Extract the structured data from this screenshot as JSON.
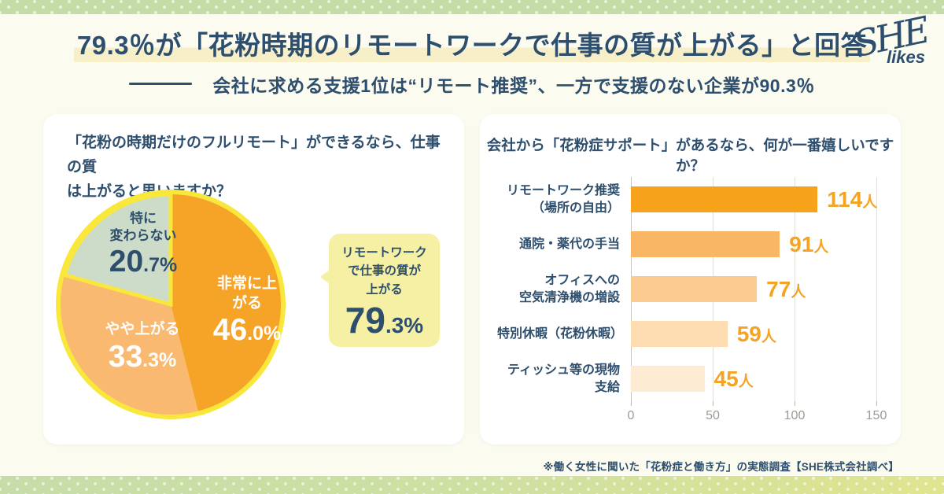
{
  "header": {
    "title": "79.3％が「花粉時期のリモートワークで仕事の質が上がる」と回答",
    "subtitle": "会社に求める支援1位は“リモート推奨”、一方で支援のない企業が90.3％",
    "highlight_color": "#F7EFC8"
  },
  "logo": {
    "main": "SHE",
    "sub": "likes"
  },
  "left_card": {
    "question_line1": "「花粉の時期だけのフルリモート」ができるなら、仕事の質",
    "question_line2": "は上がると思いますか？",
    "callout": {
      "line1": "リモートワーク",
      "line2": "で仕事の質が",
      "line3": "上がる",
      "value_big": "79",
      "value_small": ".3%",
      "bg": "#F5F0A3"
    }
  },
  "right_card": {
    "question": "会社から「花粉症サポート」があるなら、何が一番嬉しいですか？"
  },
  "footer": {
    "note": "※働く女性に聞いた「花粉症と働き方」の実態調査【SHE株式会社調べ】"
  },
  "colors": {
    "navy": "#2E4E6E",
    "cream_bg": "#FBFBF0",
    "band_green": "#C4DDA7",
    "band_yellow_green": "#DFE48F"
  },
  "chart_data": [
    {
      "type": "pie",
      "title": "「花粉の時期だけのフルリモート」ができるなら、仕事の質は上がると思いますか？",
      "start_angle_deg": -90,
      "direction": "clockwise",
      "ring_color": "#F9E73B",
      "slices": [
        {
          "label": "非常に上がる",
          "value": 46.0,
          "num": "46",
          "frac": ".0%",
          "color": "#F6A428",
          "text_color": "#FFFFFF",
          "outlined": false
        },
        {
          "label": "やや上がる",
          "value": 33.3,
          "num": "33",
          "frac": ".3%",
          "color": "#F9B971",
          "text_color": "#FFFFFF",
          "outlined": false
        },
        {
          "label": "特に変わらない",
          "label_line1": "特に",
          "label_line2": "変わらない",
          "value": 20.7,
          "num": "20",
          "frac": ".7%",
          "color": "#CDDCC8",
          "text_color": "#2E4E6E",
          "outlined": true
        }
      ],
      "annotation": {
        "text": "リモートワークで仕事の質が上がる",
        "value": "79.3%"
      }
    },
    {
      "type": "bar",
      "orientation": "horizontal",
      "title": "会社から「花粉症サポート」があるなら、何が一番嬉しいですか？",
      "categories": [
        "リモートワーク推奨（場所の自由）",
        "通院・薬代の手当",
        "オフィスへの空気清浄機の増設",
        "特別休暇（花粉休暇）",
        "ティッシュ等の現物支給"
      ],
      "category_lines": [
        [
          "リモートワーク推奨",
          "（場所の自由）"
        ],
        [
          "通院・薬代の手当"
        ],
        [
          "オフィスへの",
          "空気清浄機の増設"
        ],
        [
          "特別休暇（花粉休暇）"
        ],
        [
          "ティッシュ等の現物支給"
        ]
      ],
      "values": [
        114,
        91,
        77,
        59,
        45
      ],
      "unit": "人",
      "value_color": "#F5A324",
      "bar_colors": [
        "#F6A31B",
        "#F9B765",
        "#FBCA90",
        "#FDDCB2",
        "#FEEBD4"
      ],
      "xlim": [
        0,
        150
      ],
      "xticks": [
        0,
        50,
        100,
        150
      ],
      "grid": true,
      "legend": false
    }
  ]
}
